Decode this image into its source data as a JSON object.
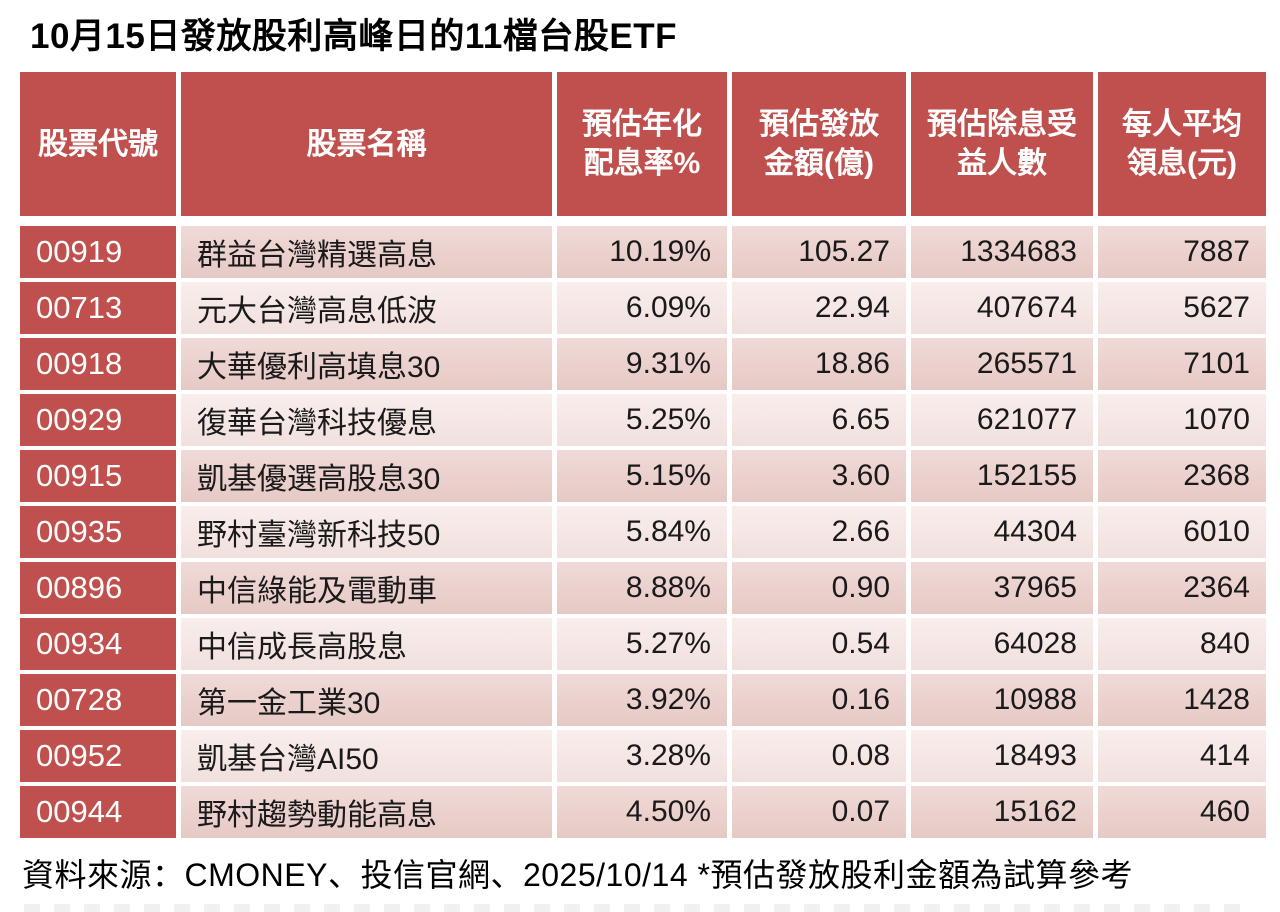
{
  "title": "10月15日發放股利高峰日的11檔台股ETF",
  "colors": {
    "header_red": "#C0504D",
    "row_dark_pink": "#EACFCB",
    "row_light_pink": "#F6E9E6",
    "header_text": "#FFFFFF",
    "body_text": "#1A1A1A"
  },
  "table": {
    "headers": [
      "股票代號",
      "股票名稱",
      "預估年化\n配息率%",
      "預估發放\n金額(億)",
      "預估除息受\n益人數",
      "每人平均\n領息(元)"
    ],
    "rows": [
      {
        "code": "00919",
        "name": "群益台灣精選高息",
        "yield": "10.19%",
        "amount": "105.27",
        "holders": "1334683",
        "avg": "7887"
      },
      {
        "code": "00713",
        "name": "元大台灣高息低波",
        "yield": "6.09%",
        "amount": "22.94",
        "holders": "407674",
        "avg": "5627"
      },
      {
        "code": "00918",
        "name": "大華優利高填息30",
        "yield": "9.31%",
        "amount": "18.86",
        "holders": "265571",
        "avg": "7101"
      },
      {
        "code": "00929",
        "name": "復華台灣科技優息",
        "yield": "5.25%",
        "amount": "6.65",
        "holders": "621077",
        "avg": "1070"
      },
      {
        "code": "00915",
        "name": "凱基優選高股息30",
        "yield": "5.15%",
        "amount": "3.60",
        "holders": "152155",
        "avg": "2368"
      },
      {
        "code": "00935",
        "name": "野村臺灣新科技50",
        "yield": "5.84%",
        "amount": "2.66",
        "holders": "44304",
        "avg": "6010"
      },
      {
        "code": "00896",
        "name": "中信綠能及電動車",
        "yield": "8.88%",
        "amount": "0.90",
        "holders": "37965",
        "avg": "2364"
      },
      {
        "code": "00934",
        "name": "中信成長高股息",
        "yield": "5.27%",
        "amount": "0.54",
        "holders": "64028",
        "avg": "840"
      },
      {
        "code": "00728",
        "name": "第一金工業30",
        "yield": "3.92%",
        "amount": "0.16",
        "holders": "10988",
        "avg": "1428"
      },
      {
        "code": "00952",
        "name": "凱基台灣AI50",
        "yield": "3.28%",
        "amount": "0.08",
        "holders": "18493",
        "avg": "414"
      },
      {
        "code": "00944",
        "name": "野村趨勢動能高息",
        "yield": "4.50%",
        "amount": "0.07",
        "holders": "15162",
        "avg": "460"
      }
    ]
  },
  "footer": "資料來源：CMONEY、投信官網、2025/10/14 *預估發放股利金額為試算參考",
  "chart_data": {
    "type": "table",
    "title": "10月15日發放股利高峰日的11檔台股ETF",
    "columns": [
      "股票代號",
      "股票名稱",
      "預估年化配息率%",
      "預估發放金額(億)",
      "預估除息受益人數",
      "每人平均領息(元)"
    ],
    "rows": [
      [
        "00919",
        "群益台灣精選高息",
        10.19,
        105.27,
        1334683,
        7887
      ],
      [
        "00713",
        "元大台灣高息低波",
        6.09,
        22.94,
        407674,
        5627
      ],
      [
        "00918",
        "大華優利高填息30",
        9.31,
        18.86,
        265571,
        7101
      ],
      [
        "00929",
        "復華台灣科技優息",
        5.25,
        6.65,
        621077,
        1070
      ],
      [
        "00915",
        "凱基優選高股息30",
        5.15,
        3.6,
        152155,
        2368
      ],
      [
        "00935",
        "野村臺灣新科技50",
        5.84,
        2.66,
        44304,
        6010
      ],
      [
        "00896",
        "中信綠能及電動車",
        8.88,
        0.9,
        37965,
        2364
      ],
      [
        "00934",
        "中信成長高股息",
        5.27,
        0.54,
        64028,
        840
      ],
      [
        "00728",
        "第一金工業30",
        3.92,
        0.16,
        10988,
        1428
      ],
      [
        "00952",
        "凱基台灣AI50",
        3.28,
        0.08,
        18493,
        414
      ],
      [
        "00944",
        "野村趨勢動能高息",
        4.5,
        0.07,
        15162,
        460
      ]
    ],
    "source_note": "資料來源：CMONEY、投信官網、2025/10/14 *預估發放股利金額為試算參考"
  }
}
